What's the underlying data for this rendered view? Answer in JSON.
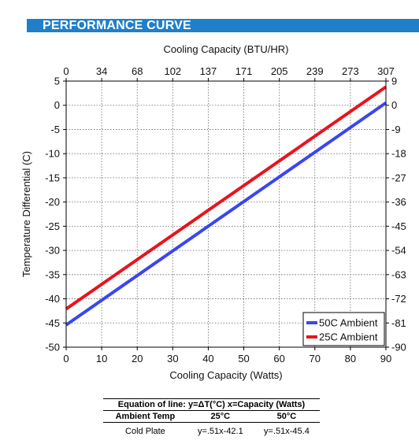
{
  "banner": {
    "title": "PERFORMANCE CURVE"
  },
  "chart_data": {
    "type": "line",
    "top_axis_label": "Cooling Capacity (BTU/HR)",
    "top_ticks": [
      "0",
      "34",
      "68",
      "102",
      "137",
      "171",
      "205",
      "239",
      "273",
      "307"
    ],
    "xlabel": "Cooling Capacity (Watts)",
    "x_ticks": [
      "0",
      "10",
      "20",
      "30",
      "40",
      "50",
      "60",
      "70",
      "80",
      "90"
    ],
    "xlim": [
      0,
      90
    ],
    "ylabel": "Temperature Differential (C)",
    "y_ticks": [
      "5",
      "0",
      "-5",
      "-10",
      "-15",
      "-20",
      "-25",
      "-30",
      "-35",
      "-40",
      "-45",
      "-50"
    ],
    "ylim": [
      -50,
      5
    ],
    "right_ticks": [
      "9",
      "0",
      "-9",
      "-18",
      "-27",
      "-36",
      "-45",
      "-54",
      "-63",
      "-72",
      "-81",
      "-90"
    ],
    "grid": true,
    "legend_position": "bottom-right",
    "series": [
      {
        "name": "50C Ambient",
        "color": "#3a46f0",
        "x": [
          0,
          90
        ],
        "y": [
          -45.4,
          0.5
        ]
      },
      {
        "name": "25C Ambient",
        "color": "#e8141e",
        "x": [
          0,
          90
        ],
        "y": [
          -42.1,
          3.8
        ]
      }
    ]
  },
  "equation_table": {
    "title": "Equation of line: y=ΔT(°C)  x=Capacity (Watts)",
    "headers": [
      "Ambient Temp",
      "25°C",
      "50°C"
    ],
    "row": [
      "Cold Plate",
      "y=.51x-42.1",
      "y=.51x-45.4"
    ]
  }
}
